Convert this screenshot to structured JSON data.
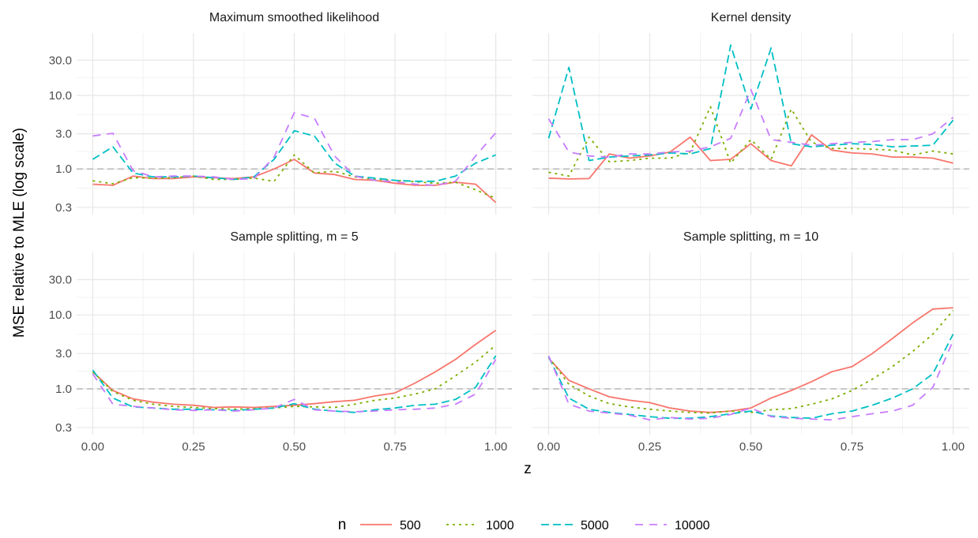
{
  "chart_data": {
    "type": "line",
    "xlabel": "z",
    "ylabel": "MSE relative to MLE (log scale)",
    "y_scale": "log10",
    "ylim": [
      0.24,
      70
    ],
    "xlim": [
      -0.04,
      1.04
    ],
    "x_ticks": [
      0,
      0.25,
      0.5,
      0.75,
      1
    ],
    "x_tick_labels": [
      "0.00",
      "0.25",
      "0.50",
      "0.75",
      "1.00"
    ],
    "y_ticks": [
      0.3,
      1,
      3,
      10,
      30
    ],
    "y_tick_labels": [
      "0.3",
      "1.0",
      "3.0",
      "10.0",
      "30.0"
    ],
    "reference_line": 1.0,
    "grid": true,
    "legend": {
      "title": "n",
      "position": "bottom",
      "entries": [
        "500",
        "1000",
        "5000",
        "10000"
      ]
    },
    "series_styles": [
      {
        "color": "#F8766D",
        "dash": "none"
      },
      {
        "color": "#7CAE00",
        "dash": "3,5"
      },
      {
        "color": "#00BFC4",
        "dash": "10,5"
      },
      {
        "color": "#C77CFF",
        "dash": "10,8"
      }
    ],
    "x": [
      0,
      0.05,
      0.1,
      0.15,
      0.2,
      0.25,
      0.3,
      0.35,
      0.4,
      0.45,
      0.5,
      0.55,
      0.6,
      0.65,
      0.7,
      0.75,
      0.8,
      0.85,
      0.9,
      0.95,
      1
    ],
    "panels": [
      {
        "title": "Maximum smoothed likelihood",
        "series": [
          {
            "name": "500",
            "values": [
              0.62,
              0.6,
              0.8,
              0.74,
              0.74,
              0.78,
              0.76,
              0.74,
              0.78,
              1.0,
              1.35,
              0.88,
              0.84,
              0.72,
              0.7,
              0.64,
              0.6,
              0.6,
              0.66,
              0.62,
              0.35
            ]
          },
          {
            "name": "1000",
            "values": [
              0.69,
              0.63,
              0.76,
              0.75,
              0.76,
              0.8,
              0.72,
              0.72,
              0.75,
              0.68,
              1.55,
              0.88,
              0.93,
              0.78,
              0.72,
              0.7,
              0.67,
              0.64,
              0.66,
              0.52,
              0.4
            ]
          },
          {
            "name": "5000",
            "values": [
              1.35,
              2.0,
              0.88,
              0.78,
              0.78,
              0.8,
              0.76,
              0.72,
              0.78,
              1.35,
              3.3,
              2.8,
              1.2,
              0.8,
              0.75,
              0.7,
              0.68,
              0.68,
              0.8,
              1.2,
              1.55
            ]
          },
          {
            "name": "10000",
            "values": [
              2.8,
              3.05,
              0.95,
              0.78,
              0.8,
              0.8,
              0.78,
              0.72,
              0.74,
              1.45,
              5.8,
              4.9,
              1.5,
              0.8,
              0.7,
              0.67,
              0.62,
              0.6,
              0.68,
              1.5,
              3.1
            ]
          }
        ]
      },
      {
        "title": "Kernel density",
        "series": [
          {
            "name": "500",
            "values": [
              0.75,
              0.73,
              0.74,
              1.6,
              1.4,
              1.5,
              1.7,
              2.7,
              1.3,
              1.35,
              2.2,
              1.3,
              1.1,
              2.9,
              1.8,
              1.65,
              1.6,
              1.45,
              1.45,
              1.4,
              1.2
            ]
          },
          {
            "name": "1000",
            "values": [
              0.9,
              0.8,
              2.7,
              1.25,
              1.3,
              1.4,
              1.4,
              1.7,
              7.0,
              1.2,
              2.5,
              1.35,
              6.5,
              2.3,
              1.9,
              1.9,
              1.85,
              1.8,
              1.55,
              1.75,
              1.6
            ]
          },
          {
            "name": "5000",
            "values": [
              2.6,
              24.0,
              1.3,
              1.45,
              1.5,
              1.55,
              1.65,
              1.6,
              1.9,
              48.0,
              6.5,
              44.0,
              2.2,
              2.0,
              2.1,
              2.2,
              2.15,
              2.0,
              2.05,
              2.1,
              4.6
            ]
          },
          {
            "name": "10000",
            "values": [
              4.8,
              1.7,
              1.5,
              1.45,
              1.6,
              1.6,
              1.7,
              1.75,
              2.0,
              2.6,
              12.0,
              2.5,
              2.3,
              2.1,
              2.2,
              2.3,
              2.35,
              2.5,
              2.5,
              3.0,
              5.0
            ]
          }
        ]
      },
      {
        "title": "Sample splitting, m = 5",
        "series": [
          {
            "name": "500",
            "values": [
              1.7,
              0.95,
              0.73,
              0.66,
              0.62,
              0.6,
              0.56,
              0.57,
              0.56,
              0.58,
              0.6,
              0.63,
              0.67,
              0.7,
              0.8,
              0.88,
              1.2,
              1.7,
              2.5,
              4.0,
              6.2
            ]
          },
          {
            "name": "1000",
            "values": [
              1.7,
              0.92,
              0.7,
              0.62,
              0.58,
              0.56,
              0.54,
              0.53,
              0.54,
              0.55,
              0.58,
              0.57,
              0.56,
              0.62,
              0.7,
              0.75,
              0.85,
              1.0,
              1.5,
              2.3,
              3.9
            ]
          },
          {
            "name": "5000",
            "values": [
              1.8,
              0.75,
              0.57,
              0.55,
              0.53,
              0.53,
              0.52,
              0.51,
              0.53,
              0.55,
              0.63,
              0.53,
              0.5,
              0.48,
              0.52,
              0.55,
              0.6,
              0.62,
              0.72,
              1.05,
              2.8
            ]
          },
          {
            "name": "10000",
            "values": [
              1.6,
              0.62,
              0.58,
              0.55,
              0.52,
              0.51,
              0.52,
              0.5,
              0.52,
              0.55,
              0.72,
              0.52,
              0.5,
              0.49,
              0.5,
              0.52,
              0.53,
              0.55,
              0.62,
              0.85,
              2.5
            ]
          }
        ]
      },
      {
        "title": "Sample splitting, m = 10",
        "series": [
          {
            "name": "500",
            "values": [
              2.6,
              1.3,
              1.0,
              0.78,
              0.7,
              0.65,
              0.55,
              0.5,
              0.48,
              0.5,
              0.55,
              0.75,
              0.95,
              1.25,
              1.7,
              2.0,
              3.0,
              4.8,
              7.8,
              12.0,
              12.5
            ]
          },
          {
            "name": "1000",
            "values": [
              2.7,
              1.15,
              0.8,
              0.63,
              0.57,
              0.53,
              0.5,
              0.48,
              0.47,
              0.5,
              0.48,
              0.52,
              0.54,
              0.62,
              0.73,
              0.95,
              1.35,
              2.0,
              3.2,
              5.5,
              11.5
            ]
          },
          {
            "name": "5000",
            "values": [
              2.7,
              0.75,
              0.53,
              0.48,
              0.45,
              0.42,
              0.4,
              0.4,
              0.42,
              0.46,
              0.5,
              0.43,
              0.41,
              0.4,
              0.46,
              0.5,
              0.6,
              0.75,
              1.0,
              1.6,
              5.5
            ]
          },
          {
            "name": "10000",
            "values": [
              2.8,
              0.62,
              0.5,
              0.47,
              0.44,
              0.38,
              0.41,
              0.39,
              0.4,
              0.45,
              0.55,
              0.42,
              0.4,
              0.39,
              0.38,
              0.42,
              0.46,
              0.5,
              0.6,
              1.05,
              4.5
            ]
          }
        ]
      }
    ]
  }
}
